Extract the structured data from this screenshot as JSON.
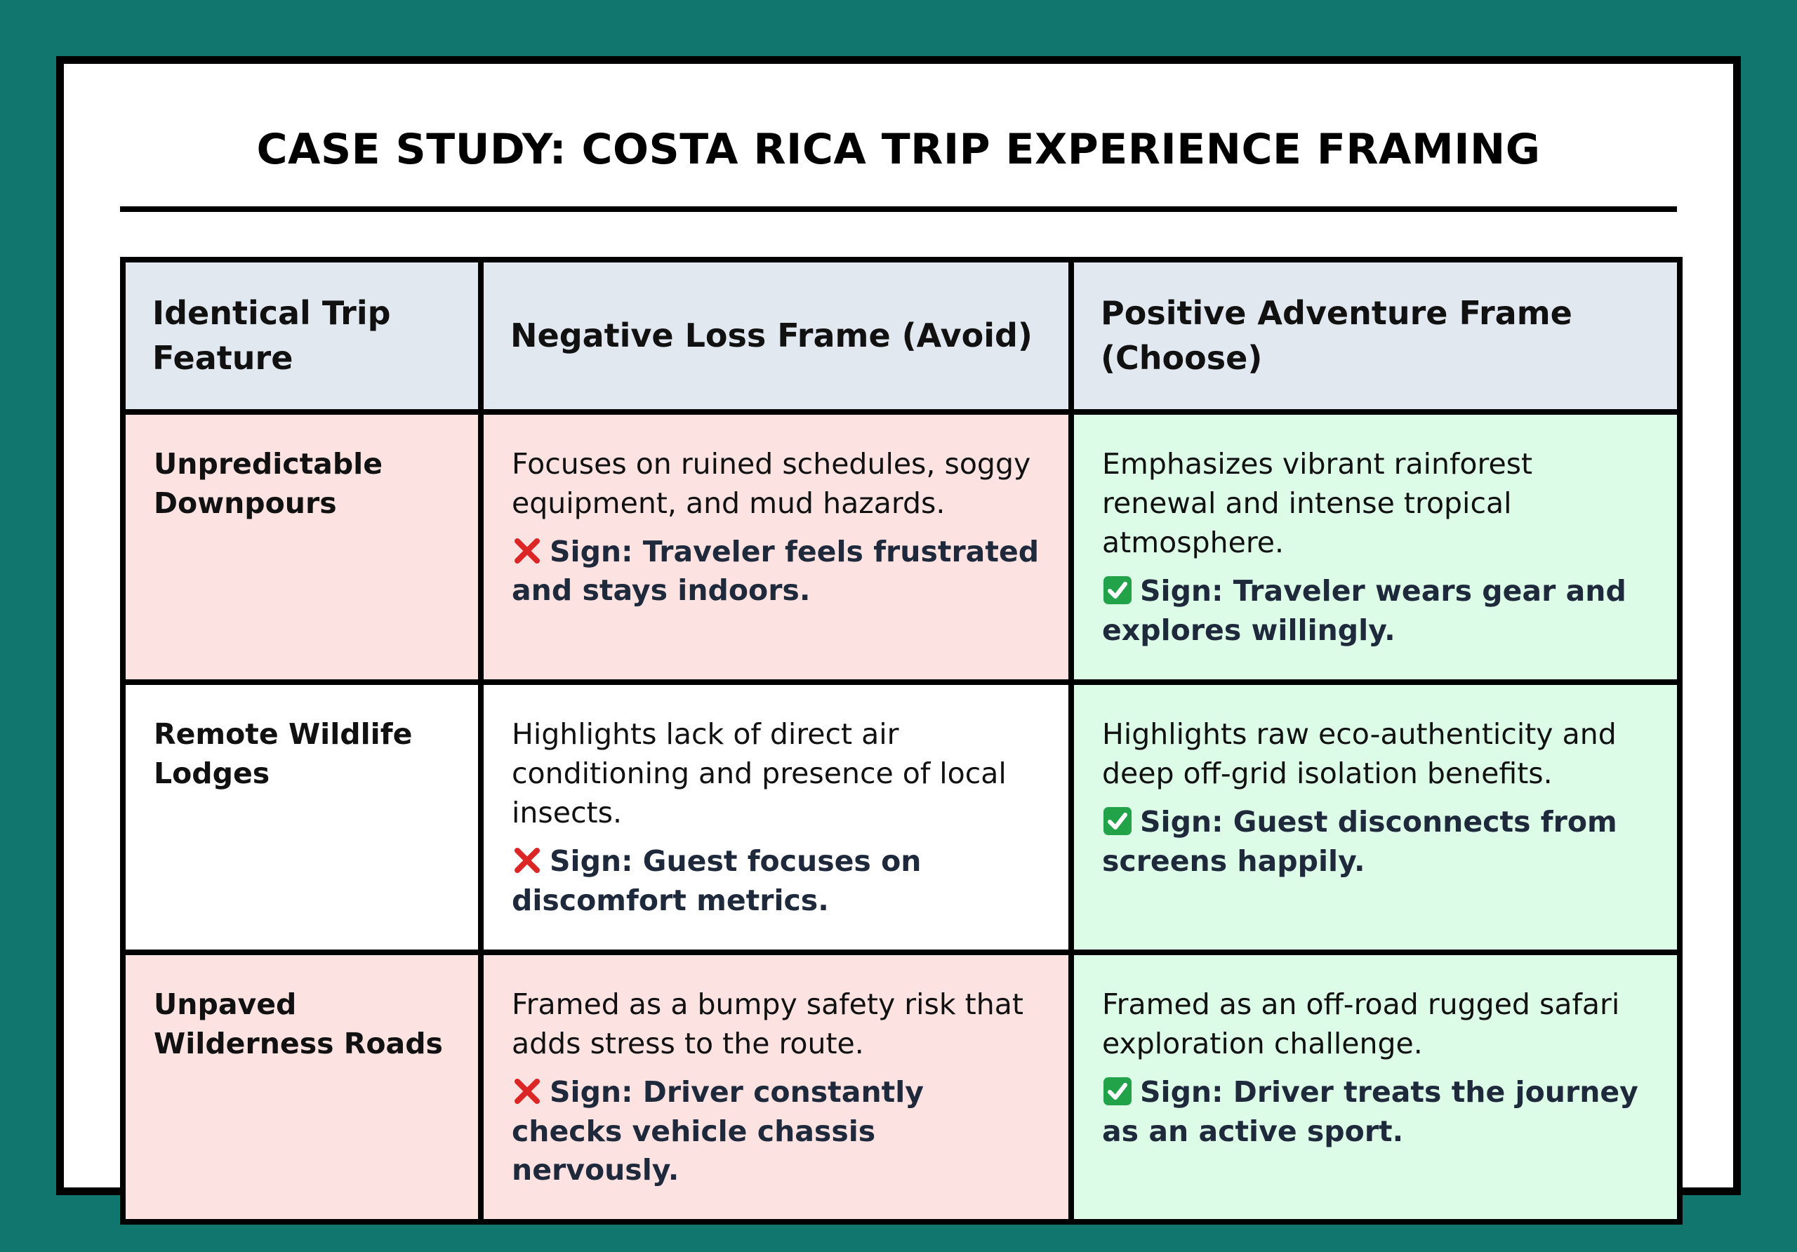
{
  "title": "CASE STUDY: COSTA RICA TRIP EXPERIENCE FRAMING",
  "table": {
    "headers": [
      "Identical Trip Feature",
      "Negative Loss Frame (Avoid)",
      "Positive Adventure Frame (Choose)"
    ],
    "rows": [
      {
        "feature": "Unpredictable Downpours",
        "negative": {
          "text": "Focuses on ruined schedules, soggy equipment, and mud hazards.",
          "sign": "Sign: Traveler feels frustrated and stays indoors."
        },
        "positive": {
          "text": "Emphasizes vibrant rainforest renewal and intense tropical atmosphere.",
          "sign": "Sign: Traveler wears gear and explores willingly."
        }
      },
      {
        "feature": "Remote Wildlife Lodges",
        "negative": {
          "text": "Highlights lack of direct air conditioning and presence of local insects.",
          "sign": "Sign: Guest focuses on discomfort metrics."
        },
        "positive": {
          "text": "Highlights raw eco-authenticity and deep off-grid isolation benefits.",
          "sign": "Sign: Guest disconnects from screens happily."
        }
      },
      {
        "feature": "Unpaved Wilderness Roads",
        "negative": {
          "text": "Framed as a bumpy safety risk that adds stress to the route.",
          "sign": "Sign: Driver constantly checks vehicle chassis nervously."
        },
        "positive": {
          "text": "Framed as an off-road rugged safari exploration challenge.",
          "sign": "Sign: Driver treats the journey as an active sport."
        }
      }
    ]
  }
}
